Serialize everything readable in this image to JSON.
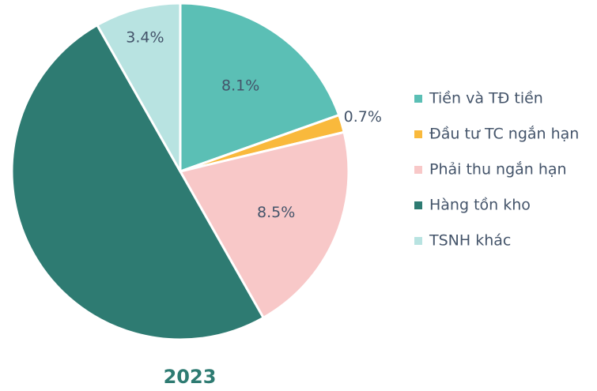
{
  "chart_data": {
    "type": "pie",
    "title": "2023",
    "categories": [
      "Tiền và TĐ tiền",
      "Đầu tư TC ngắn hạn",
      "Phải thu ngắn hạn",
      "Hàng tồn kho",
      "TSNH khác"
    ],
    "values": [
      8.1,
      0.7,
      8.5,
      20.7,
      3.4
    ],
    "value_labels": [
      "8.1%",
      "0.7%",
      "8.5%",
      null,
      "3.4%"
    ],
    "colors": [
      "#5bbfb5",
      "#f9b93c",
      "#f8c8c8",
      "#2e7b72",
      "#b8e3e1"
    ],
    "legend": "right"
  }
}
